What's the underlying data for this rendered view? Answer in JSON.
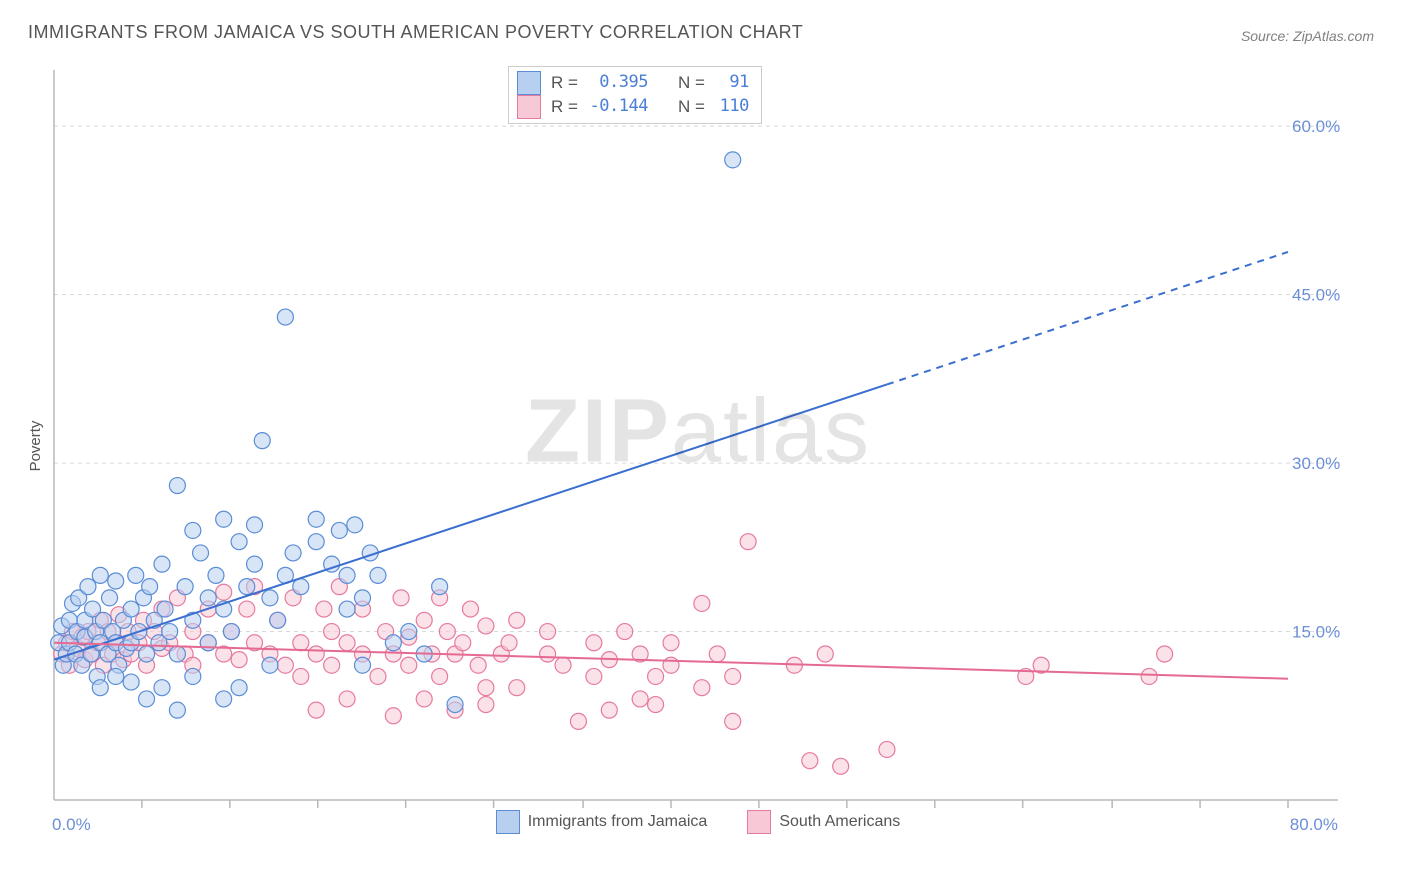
{
  "title": "IMMIGRANTS FROM JAMAICA VS SOUTH AMERICAN POVERTY CORRELATION CHART",
  "source_label": "Source: ZipAtlas.com",
  "ylabel": "Poverty",
  "watermark_bold": "ZIP",
  "watermark_rest": "atlas",
  "chart": {
    "type": "scatter",
    "background_color": "#ffffff",
    "grid_color": "#d8d8d8",
    "axis_color": "#b8b8b8",
    "tick_label_color": "#6b8fd6",
    "xlim": [
      0,
      80
    ],
    "ylim": [
      0,
      65
    ],
    "x_ticks": [
      0,
      80
    ],
    "x_tick_labels": [
      "0.0%",
      "80.0%"
    ],
    "x_minor_ticks": [
      5.7,
      11.4,
      17.1,
      22.8,
      28.5,
      34.3,
      40.0,
      45.7,
      51.4,
      57.1,
      62.8,
      68.6,
      74.3,
      80.0
    ],
    "y_ticks": [
      15,
      30,
      45,
      60
    ],
    "y_tick_labels": [
      "15.0%",
      "30.0%",
      "45.0%",
      "60.0%"
    ],
    "marker_radius": 8,
    "marker_stroke_width": 1.2,
    "trend_line_width": 2,
    "series": [
      {
        "name": "Immigrants from Jamaica",
        "fill": "#b8d0f0",
        "stroke": "#5a8dd6",
        "fill_opacity": 0.55,
        "R": "0.395",
        "N": "91",
        "trend": {
          "x1": 0,
          "y1": 12.5,
          "x2": 54,
          "y2": 37,
          "dash_from_x": 54,
          "dash_to_x": 80,
          "dash_to_y": 48.8
        },
        "points": [
          [
            0.3,
            14
          ],
          [
            0.5,
            15.5
          ],
          [
            0.6,
            12
          ],
          [
            0.8,
            13
          ],
          [
            1,
            16
          ],
          [
            1,
            14
          ],
          [
            1.2,
            17.5
          ],
          [
            1.4,
            13
          ],
          [
            1.5,
            15
          ],
          [
            1.6,
            18
          ],
          [
            1.8,
            12
          ],
          [
            2,
            16
          ],
          [
            2,
            14.5
          ],
          [
            2.2,
            19
          ],
          [
            2.4,
            13
          ],
          [
            2.5,
            17
          ],
          [
            2.7,
            15
          ],
          [
            2.8,
            11
          ],
          [
            3,
            14
          ],
          [
            3,
            20
          ],
          [
            3.2,
            16
          ],
          [
            3.5,
            13
          ],
          [
            3.6,
            18
          ],
          [
            3.8,
            15
          ],
          [
            4,
            14
          ],
          [
            4,
            19.5
          ],
          [
            4.2,
            12
          ],
          [
            4.5,
            16
          ],
          [
            4.7,
            13.5
          ],
          [
            5,
            17
          ],
          [
            5,
            14
          ],
          [
            5.3,
            20
          ],
          [
            5.5,
            15
          ],
          [
            5.8,
            18
          ],
          [
            6,
            13
          ],
          [
            6.2,
            19
          ],
          [
            6.5,
            16
          ],
          [
            6.8,
            14
          ],
          [
            7,
            21
          ],
          [
            7.2,
            17
          ],
          [
            7.5,
            15
          ],
          [
            8,
            13
          ],
          [
            8,
            28
          ],
          [
            8.5,
            19
          ],
          [
            9,
            16
          ],
          [
            9,
            24
          ],
          [
            9.5,
            22
          ],
          [
            10,
            18
          ],
          [
            10,
            14
          ],
          [
            10.5,
            20
          ],
          [
            11,
            17
          ],
          [
            11,
            25
          ],
          [
            11.5,
            15
          ],
          [
            12,
            23
          ],
          [
            12.5,
            19
          ],
          [
            13,
            21
          ],
          [
            13,
            24.5
          ],
          [
            13.5,
            32
          ],
          [
            14,
            18
          ],
          [
            14.5,
            16
          ],
          [
            15,
            43
          ],
          [
            15,
            20
          ],
          [
            15.5,
            22
          ],
          [
            16,
            19
          ],
          [
            17,
            25
          ],
          [
            17,
            23
          ],
          [
            18,
            21
          ],
          [
            18.5,
            24
          ],
          [
            19,
            20
          ],
          [
            19.5,
            24.5
          ],
          [
            20,
            18
          ],
          [
            20.5,
            22
          ],
          [
            21,
            20
          ],
          [
            7,
            10
          ],
          [
            8,
            8
          ],
          [
            9,
            11
          ],
          [
            11,
            9
          ],
          [
            12,
            10
          ],
          [
            14,
            12
          ],
          [
            5,
            10.5
          ],
          [
            6,
            9
          ],
          [
            3,
            10
          ],
          [
            4,
            11
          ],
          [
            26,
            8.5
          ],
          [
            23,
            15
          ],
          [
            24,
            13
          ],
          [
            25,
            19
          ],
          [
            19,
            17
          ],
          [
            22,
            14
          ],
          [
            20,
            12
          ],
          [
            44,
            57
          ]
        ]
      },
      {
        "name": "South Americans",
        "fill": "#f7c8d6",
        "stroke": "#e67a9e",
        "fill_opacity": 0.55,
        "R": "-0.144",
        "N": "110",
        "trend": {
          "x1": 0,
          "y1": 14.0,
          "x2": 80,
          "y2": 10.8
        },
        "points": [
          [
            0.5,
            13
          ],
          [
            0.8,
            14
          ],
          [
            1,
            12
          ],
          [
            1.2,
            15
          ],
          [
            1.5,
            13.5
          ],
          [
            1.8,
            14.5
          ],
          [
            2,
            12.5
          ],
          [
            2.2,
            15
          ],
          [
            2.5,
            13
          ],
          [
            2.8,
            14
          ],
          [
            3,
            16
          ],
          [
            3.2,
            12
          ],
          [
            3.5,
            15
          ],
          [
            3.8,
            13
          ],
          [
            4,
            14
          ],
          [
            4.2,
            16.5
          ],
          [
            4.5,
            12.5
          ],
          [
            4.8,
            15
          ],
          [
            5,
            13
          ],
          [
            5.5,
            14
          ],
          [
            5.8,
            16
          ],
          [
            6,
            12
          ],
          [
            6.5,
            15
          ],
          [
            7,
            13.5
          ],
          [
            7,
            17
          ],
          [
            7.5,
            14
          ],
          [
            8,
            18
          ],
          [
            8.5,
            13
          ],
          [
            9,
            15
          ],
          [
            9,
            12
          ],
          [
            10,
            17
          ],
          [
            10,
            14
          ],
          [
            11,
            13
          ],
          [
            11,
            18.5
          ],
          [
            11.5,
            15
          ],
          [
            12,
            12.5
          ],
          [
            12.5,
            17
          ],
          [
            13,
            14
          ],
          [
            13,
            19
          ],
          [
            14,
            13
          ],
          [
            14.5,
            16
          ],
          [
            15,
            12
          ],
          [
            15.5,
            18
          ],
          [
            16,
            14
          ],
          [
            16,
            11
          ],
          [
            17,
            13
          ],
          [
            17.5,
            17
          ],
          [
            18,
            15
          ],
          [
            18,
            12
          ],
          [
            18.5,
            19
          ],
          [
            19,
            14
          ],
          [
            20,
            13
          ],
          [
            20,
            17
          ],
          [
            21,
            11
          ],
          [
            21.5,
            15
          ],
          [
            22,
            13
          ],
          [
            22.5,
            18
          ],
          [
            23,
            12
          ],
          [
            23,
            14.5
          ],
          [
            24,
            16
          ],
          [
            24.5,
            13
          ],
          [
            25,
            18
          ],
          [
            25,
            11
          ],
          [
            25.5,
            15
          ],
          [
            26,
            13
          ],
          [
            26.5,
            14
          ],
          [
            27,
            17
          ],
          [
            27.5,
            12
          ],
          [
            28,
            15.5
          ],
          [
            28,
            10
          ],
          [
            29,
            13
          ],
          [
            29.5,
            14
          ],
          [
            30,
            16
          ],
          [
            17,
            8
          ],
          [
            19,
            9
          ],
          [
            22,
            7.5
          ],
          [
            24,
            9
          ],
          [
            26,
            8
          ],
          [
            28,
            8.5
          ],
          [
            30,
            10
          ],
          [
            32,
            13
          ],
          [
            32,
            15
          ],
          [
            33,
            12
          ],
          [
            34,
            7
          ],
          [
            35,
            14
          ],
          [
            35,
            11
          ],
          [
            36,
            12.5
          ],
          [
            36,
            8
          ],
          [
            37,
            15
          ],
          [
            38,
            9
          ],
          [
            38,
            13
          ],
          [
            39,
            11
          ],
          [
            39,
            8.5
          ],
          [
            40,
            12
          ],
          [
            40,
            14
          ],
          [
            42,
            10
          ],
          [
            43,
            13
          ],
          [
            44,
            7
          ],
          [
            44,
            11
          ],
          [
            45,
            23
          ],
          [
            48,
            12
          ],
          [
            49,
            3.5
          ],
          [
            50,
            13
          ],
          [
            51,
            3
          ],
          [
            54,
            4.5
          ],
          [
            63,
            11
          ],
          [
            64,
            12
          ],
          [
            71,
            11
          ],
          [
            72,
            13
          ],
          [
            42,
            17.5
          ]
        ]
      }
    ]
  },
  "legend": {
    "label_R": "R =",
    "label_N": "N ="
  }
}
